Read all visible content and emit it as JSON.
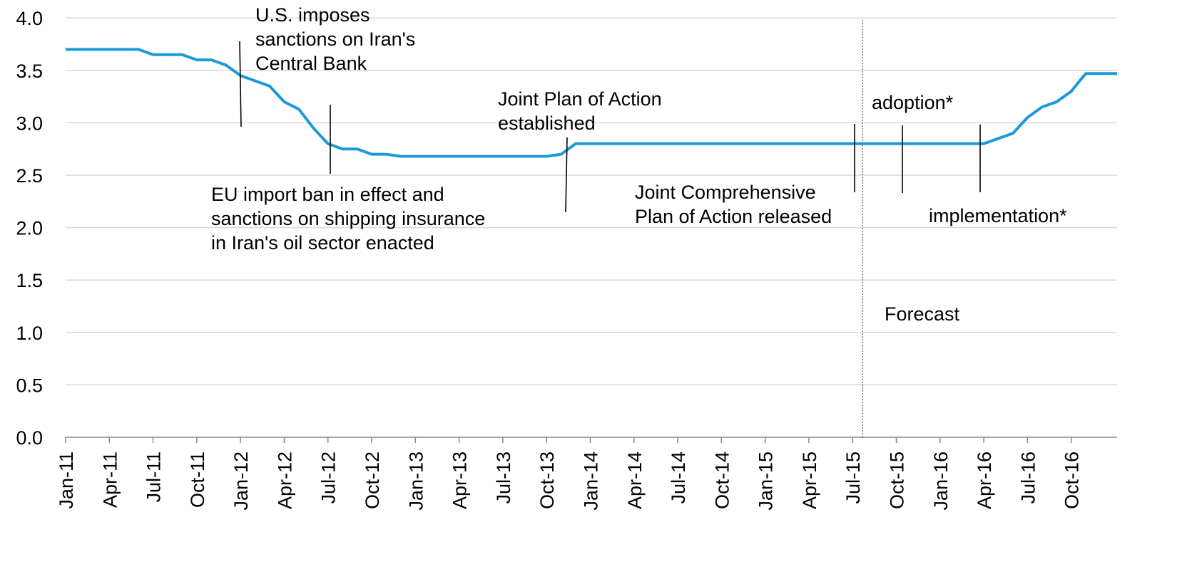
{
  "chart_data": {
    "type": "line",
    "title": "",
    "xlabel": "",
    "ylabel": "",
    "ylim": [
      0,
      4.0
    ],
    "grid": "horizontal",
    "y_ticks": [
      "0.0",
      "0.5",
      "1.0",
      "1.5",
      "2.0",
      "2.5",
      "3.0",
      "3.5",
      "4.0"
    ],
    "x_ticks": [
      "Jan-11",
      "Apr-11",
      "Jul-11",
      "Oct-11",
      "Jan-12",
      "Apr-12",
      "Jul-12",
      "Oct-12",
      "Jan-13",
      "Apr-13",
      "Jul-13",
      "Oct-13",
      "Jan-14",
      "Apr-14",
      "Jul-14",
      "Oct-14",
      "Jan-15",
      "Apr-15",
      "Jul-15",
      "Oct-15",
      "Jan-16",
      "Apr-16",
      "Jul-16",
      "Oct-16"
    ],
    "line_color": "#1c9ad6",
    "series": [
      {
        "x": [
          "Jan-11",
          "Feb-11",
          "Mar-11",
          "Apr-11",
          "May-11",
          "Jun-11",
          "Jul-11",
          "Aug-11",
          "Sep-11",
          "Oct-11",
          "Nov-11",
          "Dec-11",
          "Jan-12",
          "Feb-12",
          "Mar-12",
          "Apr-12",
          "May-12",
          "Jun-12",
          "Jul-12",
          "Aug-12",
          "Sep-12",
          "Oct-12",
          "Nov-12",
          "Dec-12",
          "Jan-13",
          "Feb-13",
          "Mar-13",
          "Apr-13",
          "May-13",
          "Jun-13",
          "Jul-13",
          "Aug-13",
          "Sep-13",
          "Oct-13",
          "Nov-13",
          "Dec-13",
          "Jan-14",
          "Feb-14",
          "Mar-14",
          "Apr-14",
          "May-14",
          "Jun-14",
          "Jul-14",
          "Aug-14",
          "Sep-14",
          "Oct-14",
          "Nov-14",
          "Dec-14",
          "Jan-15",
          "Feb-15",
          "Mar-15",
          "Apr-15",
          "May-15",
          "Jun-15",
          "Jul-15",
          "Aug-15",
          "Sep-15",
          "Oct-15",
          "Nov-15",
          "Dec-15",
          "Jan-16",
          "Feb-16",
          "Mar-16",
          "Apr-16",
          "May-16",
          "Jun-16",
          "Jul-16",
          "Aug-16",
          "Sep-16",
          "Oct-16",
          "Nov-16",
          "Dec-16"
        ],
        "values": [
          3.7,
          3.7,
          3.7,
          3.7,
          3.7,
          3.7,
          3.65,
          3.65,
          3.65,
          3.6,
          3.6,
          3.55,
          3.45,
          3.4,
          3.35,
          3.2,
          3.13,
          2.95,
          2.8,
          2.75,
          2.75,
          2.7,
          2.7,
          2.68,
          2.68,
          2.68,
          2.68,
          2.68,
          2.68,
          2.68,
          2.68,
          2.68,
          2.68,
          2.68,
          2.7,
          2.8,
          2.8,
          2.8,
          2.8,
          2.8,
          2.8,
          2.8,
          2.8,
          2.8,
          2.8,
          2.8,
          2.8,
          2.8,
          2.8,
          2.8,
          2.8,
          2.8,
          2.8,
          2.8,
          2.8,
          2.8,
          2.8,
          2.8,
          2.8,
          2.8,
          2.8,
          2.8,
          2.8,
          2.8,
          2.85,
          2.9,
          3.05,
          3.15,
          3.2,
          3.3,
          3.47,
          3.47
        ]
      }
    ],
    "forecast_divider_at": "Jul-15",
    "forecast_label": "Forecast",
    "annotations": [
      {
        "id": "us-sanctions",
        "lines": [
          "U.S. imposes",
          "sanctions on Iran's",
          "Central Bank"
        ],
        "at": "Jan-12"
      },
      {
        "id": "eu-ban",
        "lines": [
          "EU import ban in effect and",
          "sanctions on shipping insurance",
          "in Iran's oil sector enacted"
        ],
        "at": "Jul-12"
      },
      {
        "id": "jpoa",
        "lines": [
          "Joint Plan of Action",
          "established"
        ],
        "at": "Nov-13"
      },
      {
        "id": "jcpoa",
        "lines": [
          "Joint Comprehensive",
          "Plan of Action released"
        ],
        "at": "Jul-15"
      },
      {
        "id": "adoption",
        "lines": [
          "adoption*"
        ],
        "at": "Oct-15"
      },
      {
        "id": "implementation",
        "lines": [
          "implementation*"
        ],
        "at": "Mar-16"
      }
    ]
  }
}
